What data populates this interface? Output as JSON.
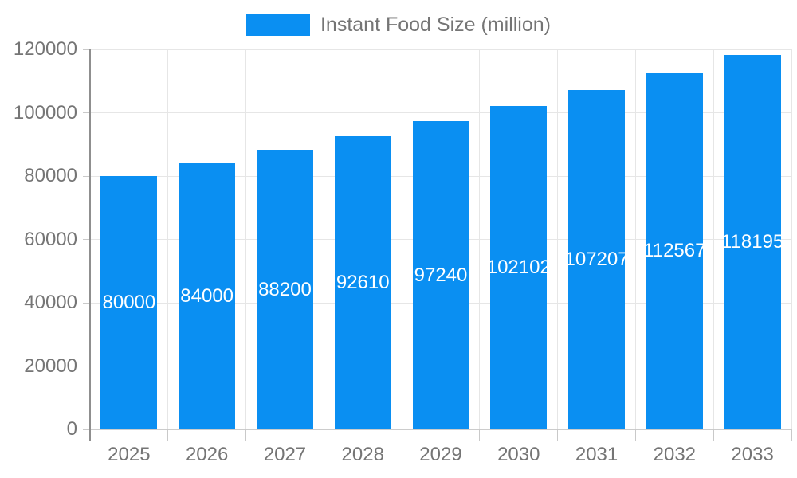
{
  "chart_data": {
    "type": "bar",
    "title": "",
    "legend_label": "Instant Food Size (million)",
    "legend_position": "top",
    "categories": [
      "2025",
      "2026",
      "2027",
      "2028",
      "2029",
      "2030",
      "2031",
      "2032",
      "2033"
    ],
    "series": [
      {
        "name": "Instant Food Size (million)",
        "values": [
          80000,
          84000,
          88200,
          92610,
          97240,
          102102,
          107207,
          112567,
          118195
        ]
      }
    ],
    "value_labels_shown": true,
    "yticks": [
      0,
      20000,
      40000,
      60000,
      80000,
      100000,
      120000
    ],
    "ylim": [
      0,
      120000
    ],
    "grid": true,
    "colors": {
      "bar": "#0a8ff2",
      "value_label": "#ffffff",
      "axis_text": "#757575",
      "gridline": "#e6e6e6",
      "x_axis_line": "#cccccc",
      "y_axis_line": "#8f8f8f",
      "tick": "#c9c9c9"
    }
  }
}
